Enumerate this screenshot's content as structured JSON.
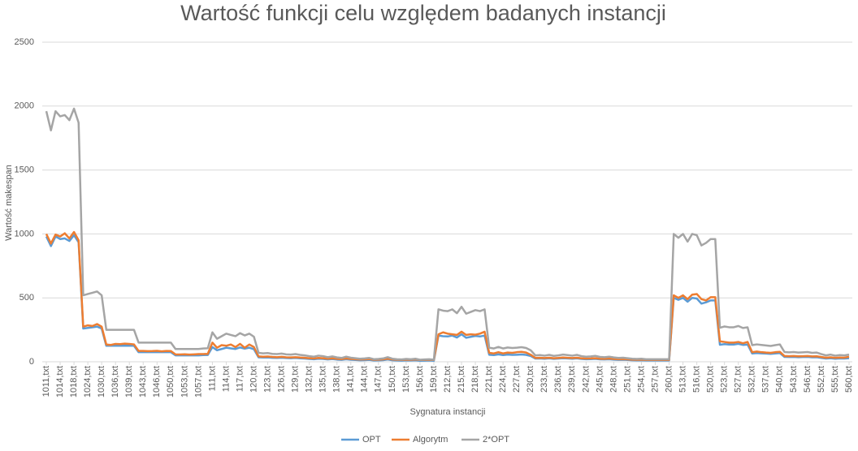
{
  "chart_data": {
    "type": "line",
    "title": "Wartość funkcji celu względem badanych instancji",
    "x_label": "Sygnatura instancji",
    "y_label": "Wartość makespan",
    "ylim": [
      0,
      2500
    ],
    "yticks": [
      0,
      500,
      1000,
      1500,
      2000,
      2500
    ],
    "grid": true,
    "legend": "bottom",
    "categories": [
      "1011,txt",
      null,
      null,
      "1014,txt",
      null,
      null,
      "1018,txt",
      null,
      null,
      "1024,txt",
      null,
      null,
      "1030,txt",
      null,
      null,
      "1036,txt",
      null,
      null,
      "1039,txt",
      null,
      null,
      "1043,txt",
      null,
      null,
      "1046,txt",
      null,
      null,
      "1050,txt",
      null,
      null,
      "1053,txt",
      null,
      null,
      "1057,txt",
      null,
      null,
      "111,txt",
      null,
      null,
      "114,txt",
      null,
      null,
      "117,txt",
      null,
      null,
      "120,txt",
      null,
      null,
      "123,txt",
      null,
      null,
      "126,txt",
      null,
      null,
      "129,txt",
      null,
      null,
      "132,txt",
      null,
      null,
      "135,txt",
      null,
      null,
      "138,txt",
      null,
      null,
      "141,txt",
      null,
      null,
      "144,txt",
      null,
      null,
      "147,txt",
      null,
      null,
      "150,txt",
      null,
      null,
      "153,txt",
      null,
      null,
      "156,txt",
      null,
      null,
      "159,txt",
      null,
      null,
      "212,txt",
      null,
      null,
      "215,txt",
      null,
      null,
      "218,txt",
      null,
      null,
      "221,txt",
      null,
      null,
      "224,txt",
      null,
      null,
      "227,txt",
      null,
      null,
      "230,txt",
      null,
      null,
      "233,txt",
      null,
      null,
      "236,txt",
      null,
      null,
      "239,txt",
      null,
      null,
      "242,txt",
      null,
      null,
      "245,txt",
      null,
      null,
      "248,txt",
      null,
      null,
      "251,txt",
      null,
      null,
      "254,txt",
      null,
      null,
      "257,txt",
      null,
      null,
      "260,txt",
      null,
      null,
      "513,txt",
      null,
      null,
      "516,txt",
      null,
      null,
      "520,txt",
      null,
      null,
      "523,txt",
      null,
      null,
      "527,txt",
      null,
      null,
      "532,txt",
      null,
      null,
      "537,txt",
      null,
      null,
      "540,txt",
      null,
      null,
      "543,txt",
      null,
      null,
      "546,txt",
      null,
      null,
      "552,txt",
      null,
      null,
      "555,txt",
      null,
      null,
      "560,txt"
    ],
    "series": [
      {
        "name": "OPT",
        "color": "#5b9bd5",
        "values": [
          980,
          905,
          980,
          960,
          965,
          945,
          990,
          935,
          260,
          265,
          270,
          275,
          260,
          125,
          125,
          125,
          125,
          125,
          125,
          125,
          75,
          75,
          75,
          75,
          75,
          75,
          75,
          75,
          50,
          50,
          50,
          50,
          50,
          50,
          52,
          53,
          115,
          90,
          100,
          110,
          105,
          100,
          112,
          103,
          110,
          98,
          35,
          33,
          34,
          31,
          30,
          32,
          29,
          28,
          30,
          27,
          25,
          22,
          20,
          24,
          22,
          18,
          21,
          17,
          15,
          20,
          16,
          14,
          12,
          13,
          15,
          10,
          11,
          13,
          18,
          12,
          10,
          9,
          11,
          10,
          12,
          8,
          9,
          10,
          8,
          205,
          200,
          198,
          205,
          190,
          215,
          188,
          195,
          202,
          198,
          205,
          55,
          52,
          58,
          52,
          56,
          54,
          55,
          57,
          54,
          45,
          25,
          26,
          24,
          27,
          23,
          25,
          28,
          26,
          24,
          27,
          22,
          20,
          21,
          23,
          19,
          18,
          20,
          17,
          15,
          16,
          14,
          12,
          11,
          12,
          10,
          10,
          10,
          10,
          10,
          10,
          500,
          485,
          500,
          470,
          500,
          495,
          455,
          465,
          480,
          480,
          133,
          138,
          135,
          135,
          140,
          132,
          135,
          65,
          68,
          66,
          64,
          62,
          65,
          68,
          38,
          37,
          38,
          36,
          37,
          38,
          35,
          36,
          30,
          25,
          28,
          24,
          26,
          25,
          28
        ]
      },
      {
        "name": "Algorytm",
        "color": "#ed7d31",
        "values": [
          1000,
          925,
          995,
          980,
          1005,
          965,
          1015,
          950,
          275,
          285,
          280,
          295,
          275,
          135,
          132,
          140,
          138,
          142,
          140,
          136,
          85,
          85,
          83,
          84,
          86,
          82,
          85,
          84,
          58,
          57,
          59,
          56,
          58,
          60,
          60,
          62,
          150,
          110,
          130,
          125,
          135,
          115,
          140,
          110,
          135,
          115,
          42,
          40,
          41,
          38,
          36,
          39,
          35,
          34,
          36,
          33,
          31,
          28,
          26,
          30,
          28,
          24,
          27,
          23,
          21,
          26,
          22,
          20,
          18,
          19,
          21,
          16,
          17,
          19,
          24,
          18,
          16,
          15,
          17,
          16,
          18,
          14,
          15,
          16,
          14,
          215,
          230,
          220,
          215,
          210,
          235,
          210,
          215,
          212,
          220,
          235,
          70,
          65,
          75,
          65,
          72,
          70,
          75,
          78,
          72,
          55,
          30,
          31,
          29,
          32,
          28,
          30,
          33,
          31,
          29,
          32,
          27,
          25,
          26,
          28,
          24,
          23,
          25,
          22,
          20,
          21,
          19,
          17,
          16,
          17,
          15,
          15,
          15,
          15,
          15,
          15,
          520,
          500,
          520,
          490,
          525,
          530,
          490,
          480,
          505,
          505,
          160,
          155,
          150,
          150,
          155,
          145,
          155,
          75,
          80,
          75,
          72,
          70,
          75,
          78,
          45,
          44,
          45,
          43,
          44,
          45,
          42,
          43,
          37,
          32,
          35,
          31,
          33,
          32,
          40
        ]
      },
      {
        "name": "2*OPT",
        "color": "#a5a5a5",
        "values": [
          1960,
          1810,
          1960,
          1920,
          1930,
          1890,
          1980,
          1870,
          520,
          530,
          540,
          550,
          520,
          250,
          250,
          250,
          250,
          250,
          250,
          250,
          150,
          150,
          150,
          150,
          150,
          150,
          150,
          150,
          100,
          100,
          100,
          100,
          100,
          100,
          104,
          106,
          230,
          180,
          200,
          220,
          210,
          200,
          224,
          206,
          220,
          196,
          70,
          66,
          68,
          62,
          60,
          64,
          58,
          56,
          60,
          54,
          50,
          44,
          40,
          48,
          44,
          36,
          42,
          34,
          30,
          40,
          32,
          28,
          24,
          26,
          30,
          20,
          22,
          26,
          36,
          24,
          20,
          18,
          22,
          20,
          24,
          16,
          18,
          20,
          16,
          410,
          400,
          396,
          410,
          380,
          430,
          376,
          390,
          404,
          396,
          410,
          110,
          104,
          116,
          104,
          112,
          108,
          110,
          114,
          108,
          90,
          50,
          52,
          48,
          54,
          46,
          50,
          56,
          52,
          48,
          54,
          44,
          40,
          42,
          46,
          38,
          36,
          40,
          34,
          30,
          32,
          28,
          24,
          22,
          24,
          20,
          20,
          20,
          20,
          20,
          20,
          1000,
          970,
          1000,
          940,
          1000,
          990,
          910,
          930,
          960,
          960,
          266,
          276,
          270,
          270,
          280,
          264,
          270,
          130,
          136,
          132,
          128,
          124,
          130,
          136,
          76,
          74,
          76,
          72,
          74,
          76,
          70,
          72,
          60,
          50,
          56,
          48,
          52,
          50,
          56
        ]
      }
    ]
  }
}
